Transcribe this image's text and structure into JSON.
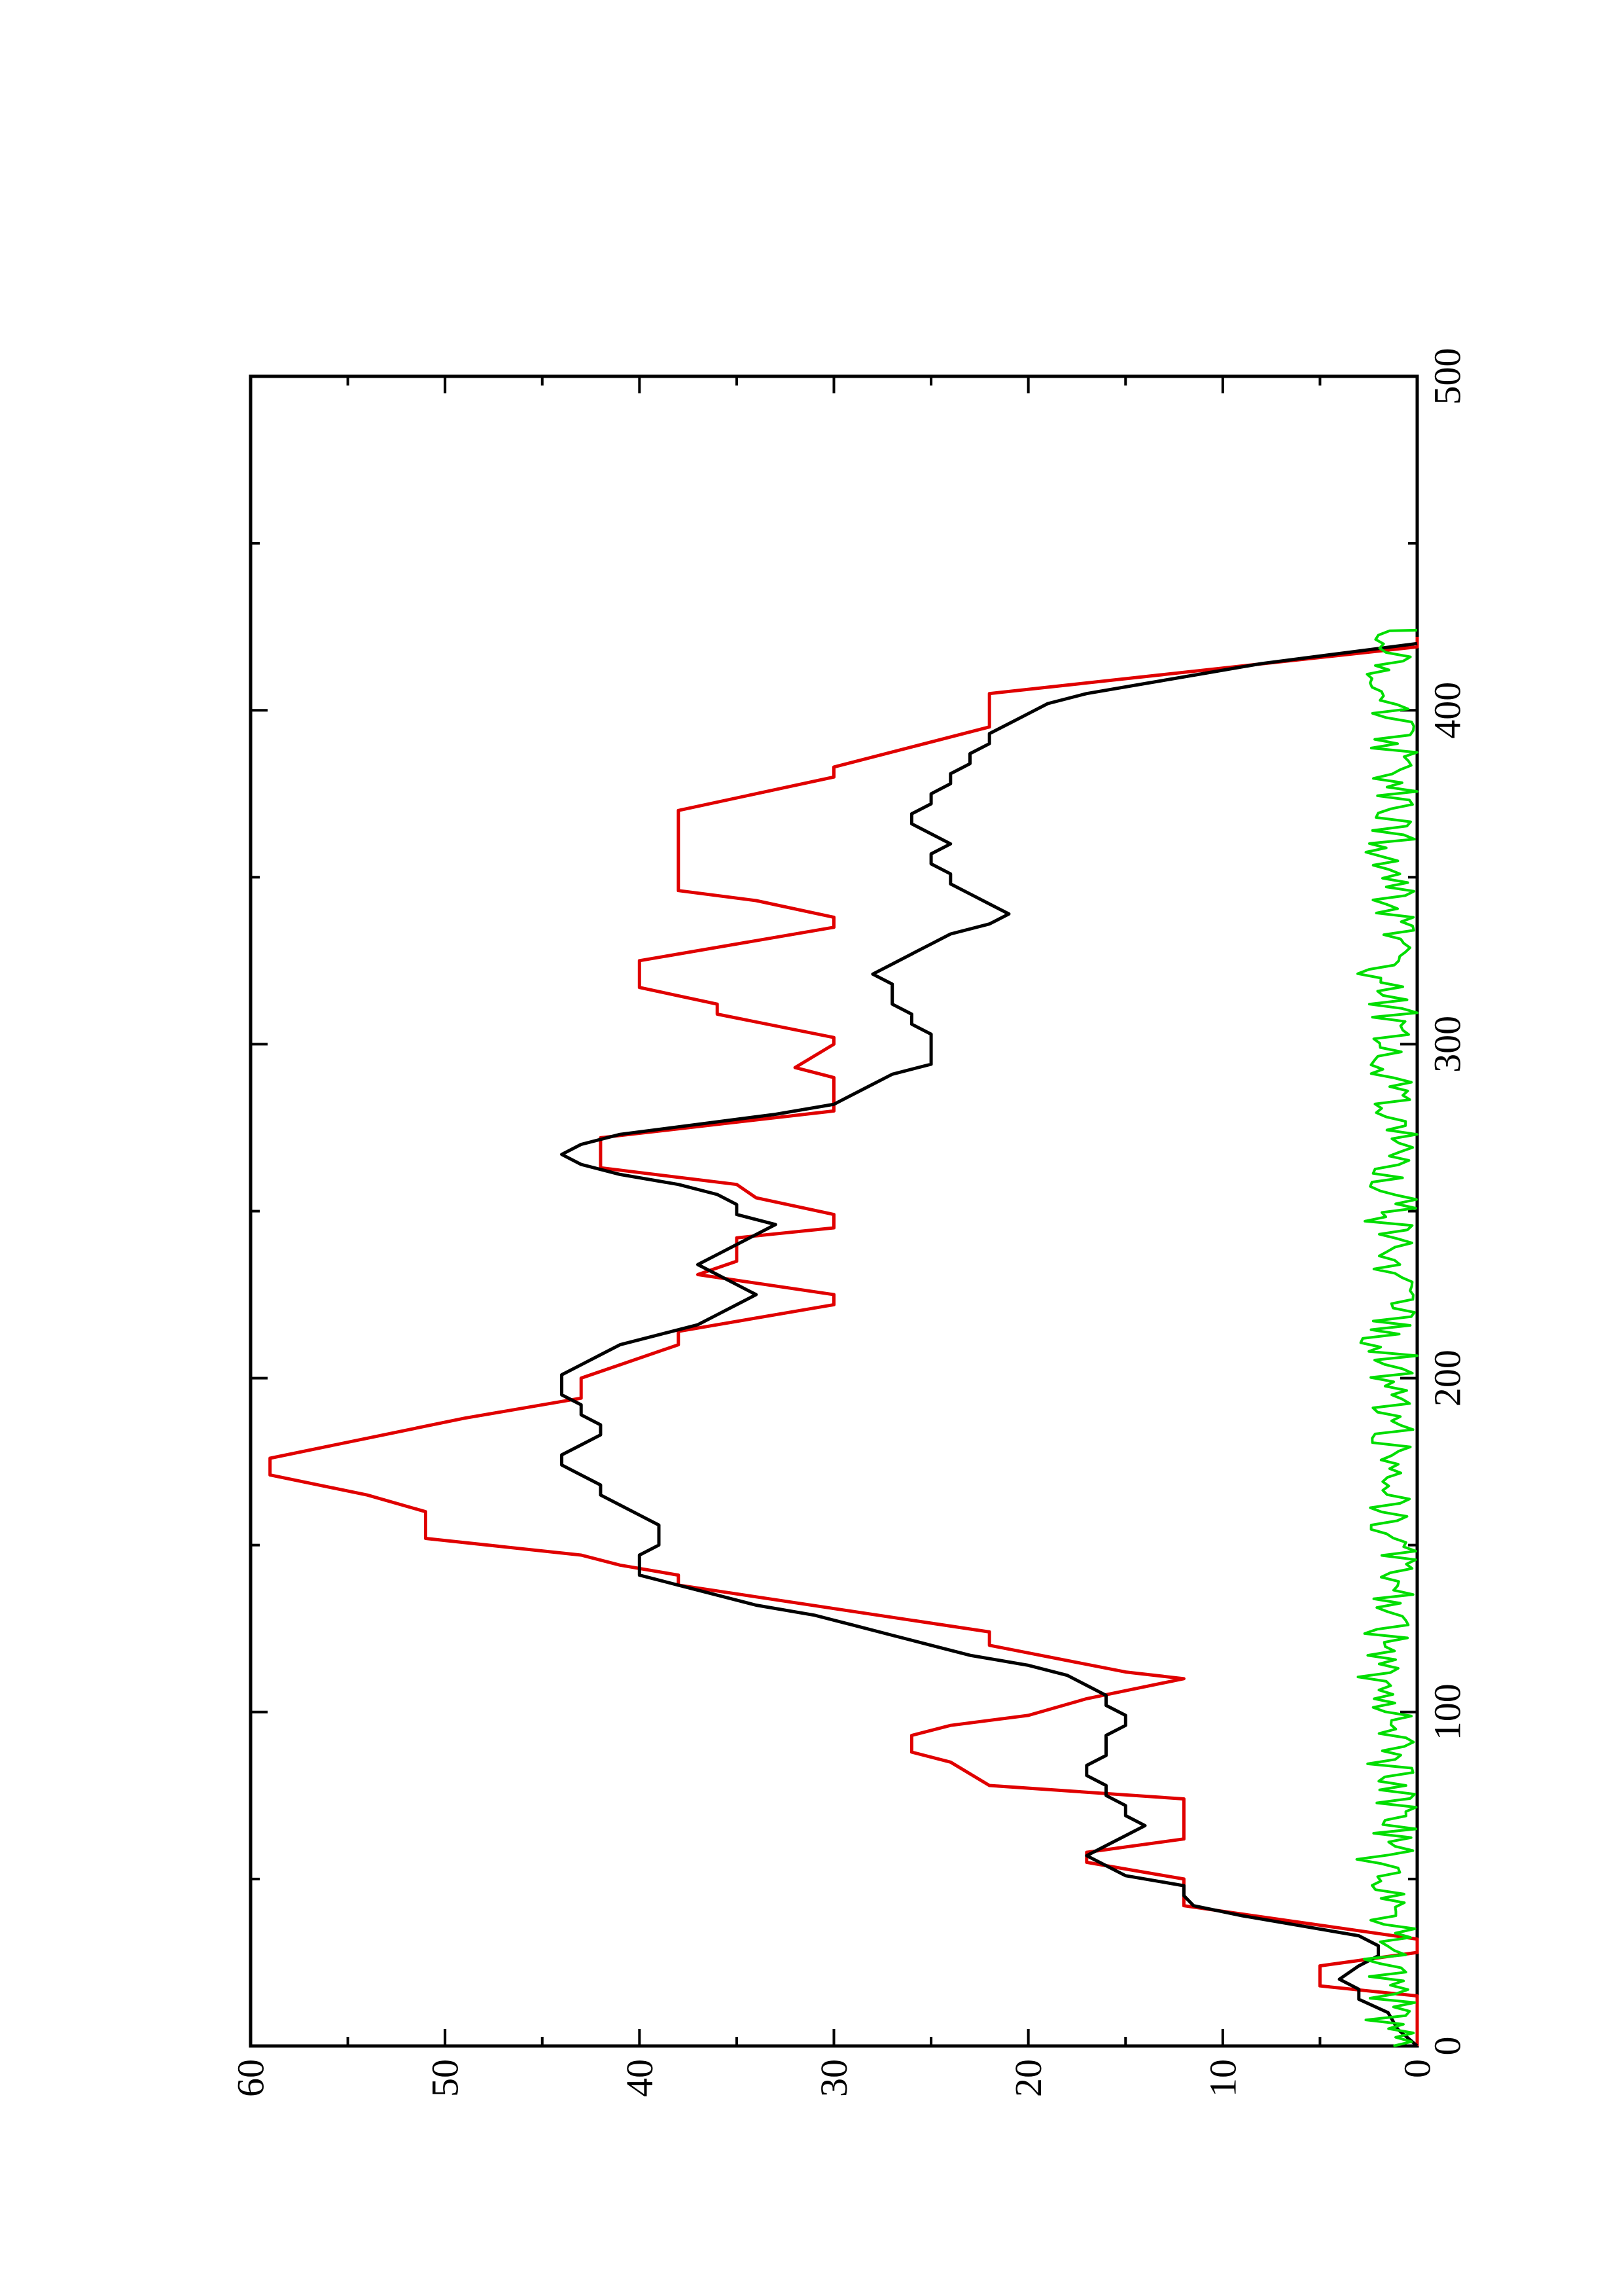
{
  "chart_data": {
    "type": "line",
    "orientation": "rotated-90-ccw",
    "title": "",
    "xlabel": "",
    "ylabel": "",
    "xlim": [
      0,
      500
    ],
    "ylim": [
      0,
      60
    ],
    "x_ticks": [
      0,
      100,
      200,
      300,
      400,
      500
    ],
    "y_ticks": [
      0,
      10,
      20,
      30,
      40,
      50,
      60
    ],
    "x_minor_step": 50,
    "y_minor_step": 5,
    "grid": false,
    "legend": "none",
    "series": [
      {
        "color": "#e00000",
        "style": "step",
        "points": [
          [
            0,
            0
          ],
          [
            15,
            0
          ],
          [
            18,
            5
          ],
          [
            24,
            5
          ],
          [
            28,
            0
          ],
          [
            32,
            0
          ],
          [
            42,
            12
          ],
          [
            50,
            12
          ],
          [
            55,
            17
          ],
          [
            58,
            17
          ],
          [
            62,
            12
          ],
          [
            74,
            12
          ],
          [
            78,
            22
          ],
          [
            85,
            24
          ],
          [
            88,
            26
          ],
          [
            93,
            26
          ],
          [
            96,
            24
          ],
          [
            99,
            20
          ],
          [
            104,
            17
          ],
          [
            110,
            12
          ],
          [
            112,
            15
          ],
          [
            120,
            22
          ],
          [
            124,
            22
          ],
          [
            138,
            38
          ],
          [
            141,
            38
          ],
          [
            144,
            41
          ],
          [
            147,
            43
          ],
          [
            152,
            51
          ],
          [
            160,
            51
          ],
          [
            165,
            54
          ],
          [
            171,
            59
          ],
          [
            176,
            59
          ],
          [
            182,
            54
          ],
          [
            188,
            49
          ],
          [
            194,
            43
          ],
          [
            200,
            43
          ],
          [
            204,
            41
          ],
          [
            210,
            38
          ],
          [
            214,
            38
          ],
          [
            222,
            30
          ],
          [
            225,
            30
          ],
          [
            231,
            37
          ],
          [
            235,
            35
          ],
          [
            242,
            35
          ],
          [
            245,
            30
          ],
          [
            249,
            30
          ],
          [
            254,
            34
          ],
          [
            258,
            35
          ],
          [
            263,
            42
          ],
          [
            272,
            42
          ],
          [
            280,
            30
          ],
          [
            290,
            30
          ],
          [
            293,
            32
          ],
          [
            300,
            30
          ],
          [
            302,
            30
          ],
          [
            309,
            36
          ],
          [
            312,
            36
          ],
          [
            317,
            40
          ],
          [
            325,
            40
          ],
          [
            335,
            30
          ],
          [
            338,
            30
          ],
          [
            343,
            34
          ],
          [
            346,
            38
          ],
          [
            361,
            38
          ],
          [
            364,
            38
          ],
          [
            370,
            38
          ],
          [
            380,
            30
          ],
          [
            383,
            30
          ],
          [
            395,
            22
          ],
          [
            405,
            22
          ],
          [
            419,
            0
          ],
          [
            422,
            0
          ]
        ]
      },
      {
        "color": "#000000",
        "style": "line",
        "points": [
          [
            0,
            0
          ],
          [
            5,
            1
          ],
          [
            10,
            1.5
          ],
          [
            14,
            3
          ],
          [
            17,
            3
          ],
          [
            20,
            4
          ],
          [
            24,
            3
          ],
          [
            27,
            2
          ],
          [
            30,
            2
          ],
          [
            33,
            3
          ],
          [
            36,
            6
          ],
          [
            39,
            9
          ],
          [
            42,
            11.5
          ],
          [
            45,
            12
          ],
          [
            48,
            12
          ],
          [
            51,
            15
          ],
          [
            54,
            16
          ],
          [
            57,
            17
          ],
          [
            60,
            16
          ],
          [
            63,
            15
          ],
          [
            66,
            14
          ],
          [
            69,
            15
          ],
          [
            72,
            15
          ],
          [
            75,
            16
          ],
          [
            78,
            16
          ],
          [
            81,
            17
          ],
          [
            84,
            17
          ],
          [
            87,
            16
          ],
          [
            90,
            16
          ],
          [
            93,
            16
          ],
          [
            96,
            15
          ],
          [
            99,
            15
          ],
          [
            102,
            16
          ],
          [
            105,
            16
          ],
          [
            108,
            17
          ],
          [
            111,
            18
          ],
          [
            114,
            20
          ],
          [
            117,
            23
          ],
          [
            120,
            25
          ],
          [
            123,
            27
          ],
          [
            126,
            29
          ],
          [
            129,
            31
          ],
          [
            132,
            34
          ],
          [
            135,
            36
          ],
          [
            138,
            38
          ],
          [
            141,
            40
          ],
          [
            144,
            40
          ],
          [
            147,
            40
          ],
          [
            150,
            39
          ],
          [
            153,
            39
          ],
          [
            156,
            39
          ],
          [
            159,
            40
          ],
          [
            162,
            41
          ],
          [
            165,
            42
          ],
          [
            168,
            42
          ],
          [
            171,
            43
          ],
          [
            174,
            44
          ],
          [
            177,
            44
          ],
          [
            180,
            43
          ],
          [
            183,
            42
          ],
          [
            186,
            42
          ],
          [
            189,
            43
          ],
          [
            192,
            43
          ],
          [
            195,
            44
          ],
          [
            198,
            44
          ],
          [
            201,
            44
          ],
          [
            204,
            43
          ],
          [
            207,
            42
          ],
          [
            210,
            41
          ],
          [
            213,
            39
          ],
          [
            216,
            37
          ],
          [
            219,
            36
          ],
          [
            222,
            35
          ],
          [
            225,
            34
          ],
          [
            228,
            35
          ],
          [
            231,
            36
          ],
          [
            234,
            37
          ],
          [
            237,
            36
          ],
          [
            240,
            35
          ],
          [
            243,
            34
          ],
          [
            246,
            33
          ],
          [
            249,
            35
          ],
          [
            252,
            35
          ],
          [
            255,
            36
          ],
          [
            258,
            38
          ],
          [
            261,
            41
          ],
          [
            264,
            43
          ],
          [
            267,
            44
          ],
          [
            270,
            43
          ],
          [
            273,
            41
          ],
          [
            276,
            37
          ],
          [
            279,
            33
          ],
          [
            282,
            30
          ],
          [
            285,
            29
          ],
          [
            288,
            28
          ],
          [
            291,
            27
          ],
          [
            294,
            25
          ],
          [
            297,
            25
          ],
          [
            300,
            25
          ],
          [
            303,
            25
          ],
          [
            306,
            26
          ],
          [
            309,
            26
          ],
          [
            312,
            27
          ],
          [
            315,
            27
          ],
          [
            318,
            27
          ],
          [
            321,
            28
          ],
          [
            324,
            27
          ],
          [
            327,
            26
          ],
          [
            330,
            25
          ],
          [
            333,
            24
          ],
          [
            336,
            22
          ],
          [
            339,
            21
          ],
          [
            342,
            22
          ],
          [
            345,
            23
          ],
          [
            348,
            24
          ],
          [
            351,
            24
          ],
          [
            354,
            25
          ],
          [
            357,
            25
          ],
          [
            360,
            24
          ],
          [
            363,
            25
          ],
          [
            366,
            26
          ],
          [
            369,
            26
          ],
          [
            372,
            25
          ],
          [
            375,
            25
          ],
          [
            378,
            24
          ],
          [
            381,
            24
          ],
          [
            384,
            23
          ],
          [
            387,
            23
          ],
          [
            390,
            22
          ],
          [
            393,
            22
          ],
          [
            396,
            21
          ],
          [
            399,
            20
          ],
          [
            402,
            19
          ],
          [
            405,
            17
          ],
          [
            408,
            14
          ],
          [
            411,
            11
          ],
          [
            414,
            8
          ],
          [
            417,
            4
          ],
          [
            420,
            0
          ]
        ]
      },
      {
        "color": "#00dd00",
        "style": "noise",
        "seed": 7,
        "x_range": [
          0,
          424
        ],
        "typical_max": 2.5,
        "peak_max": 4.5
      }
    ]
  }
}
